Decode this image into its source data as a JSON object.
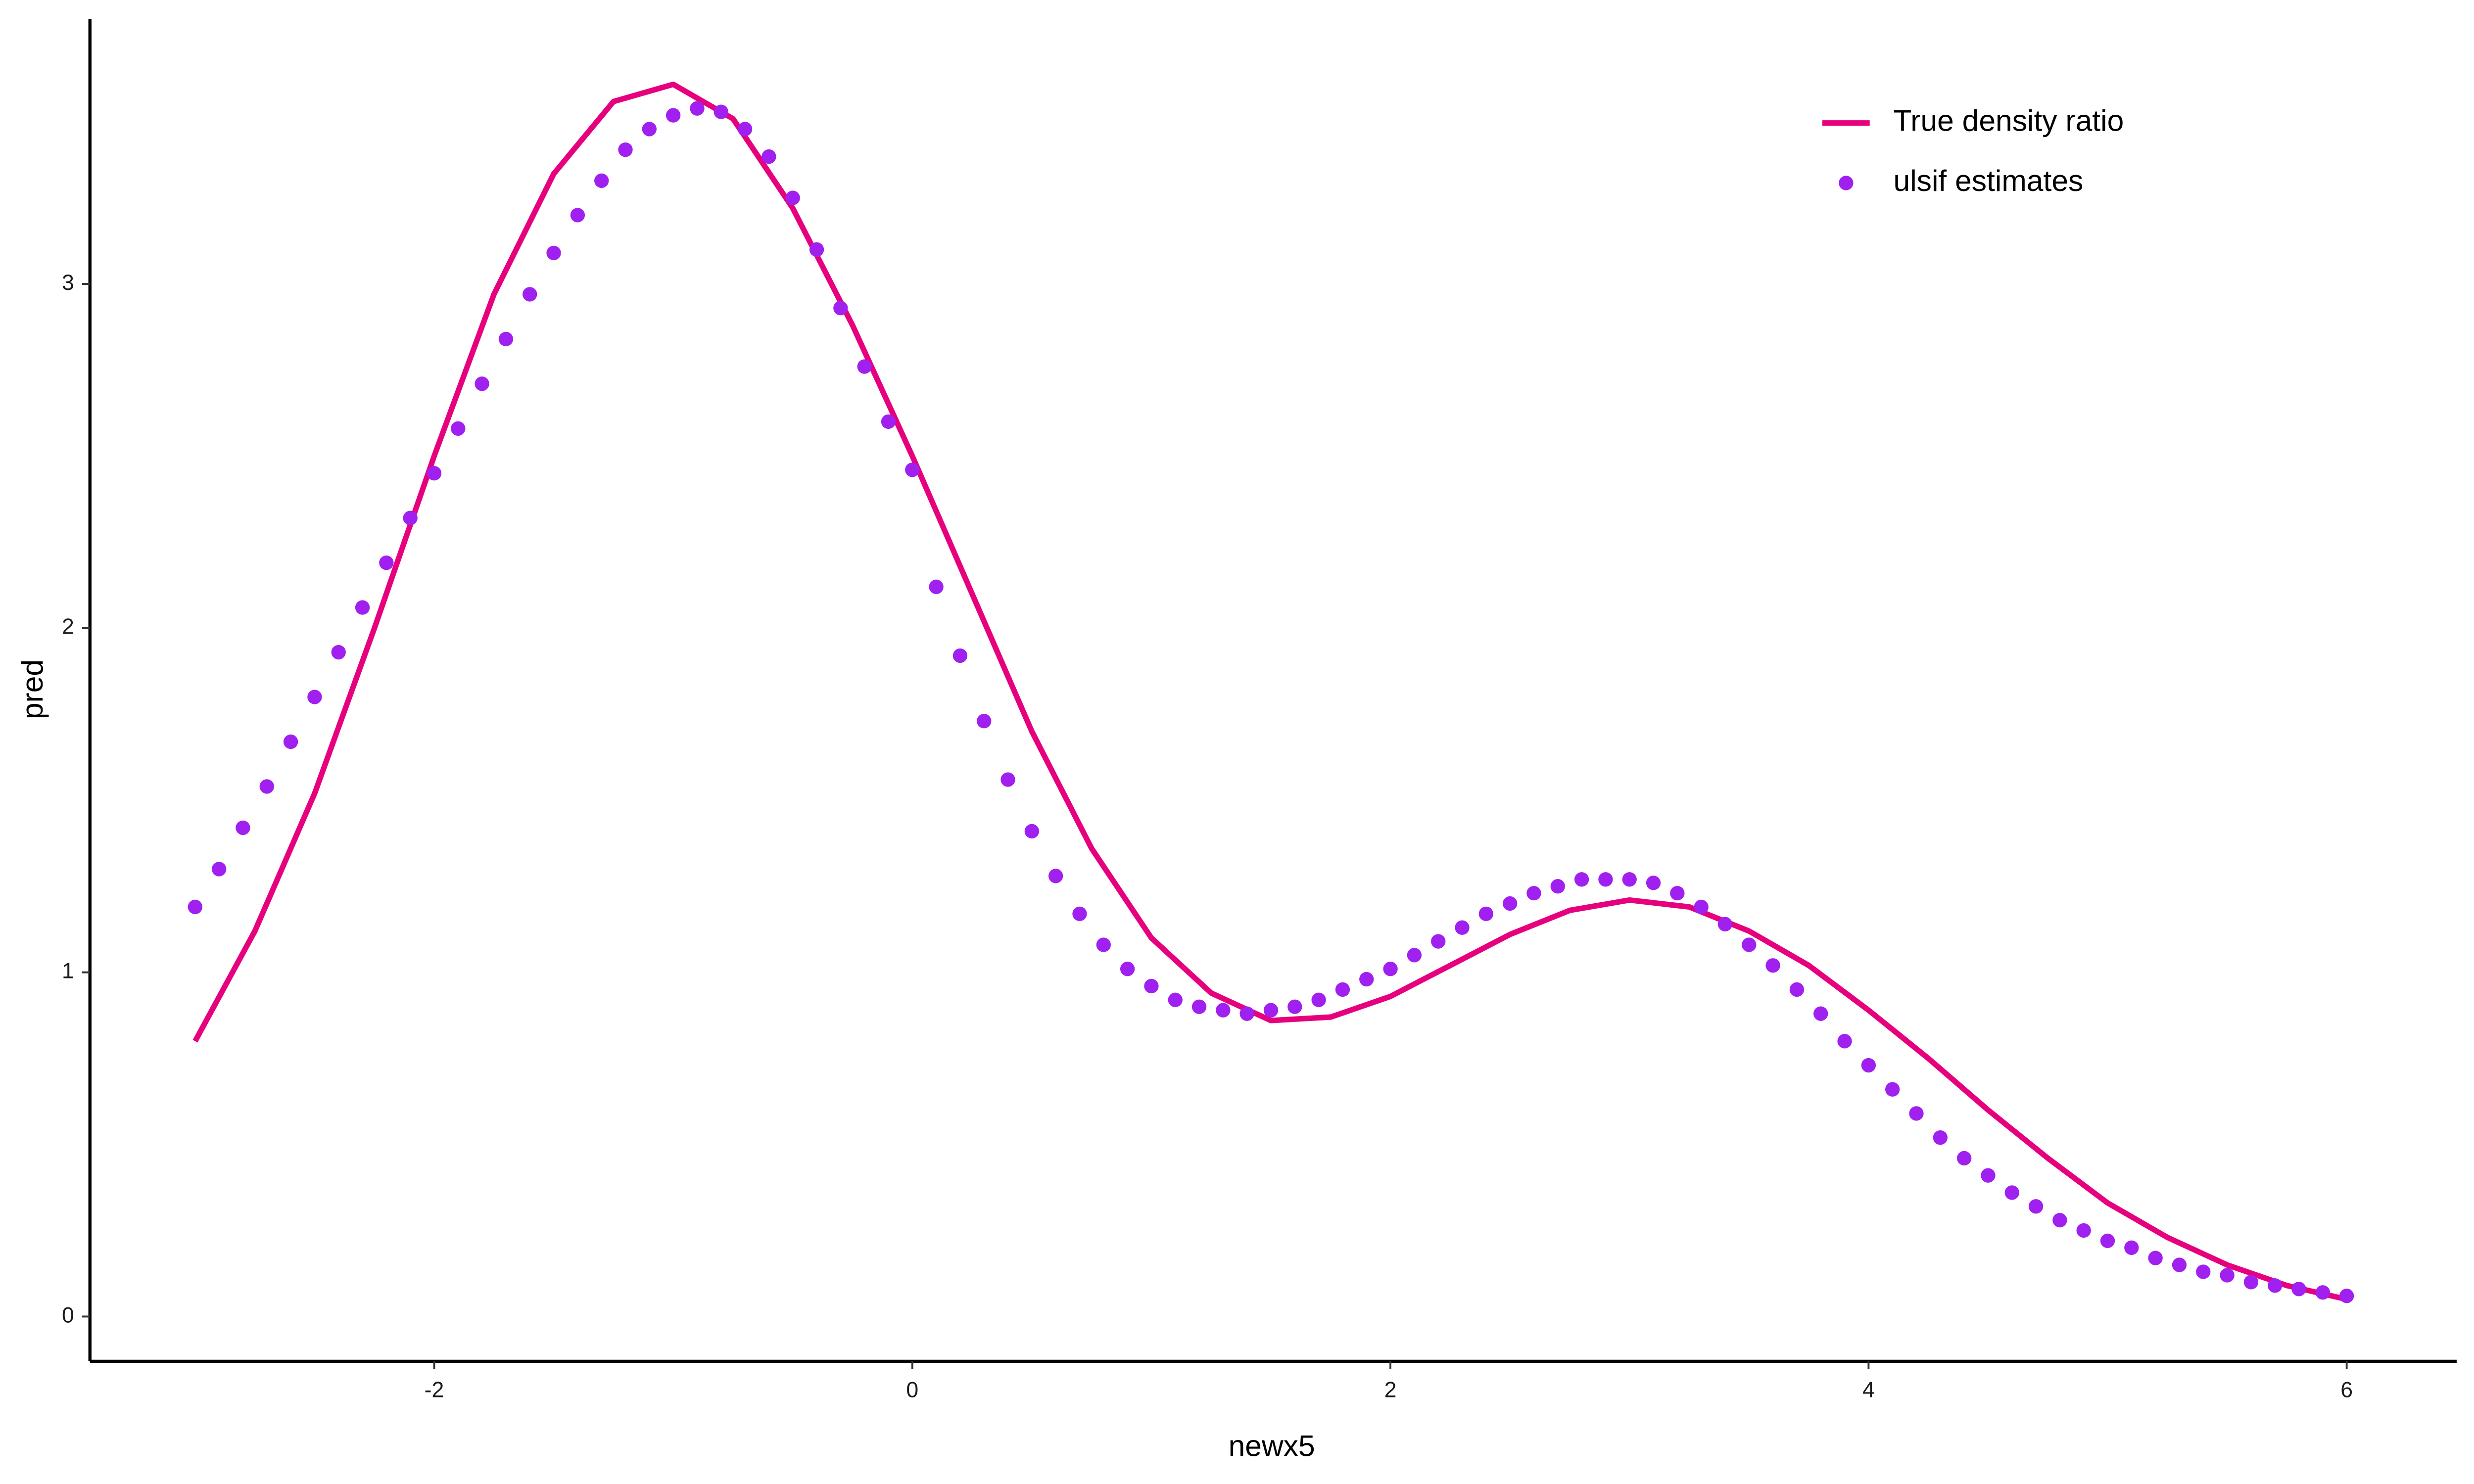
{
  "chart_data": {
    "type": "line",
    "xlabel": "newx5",
    "ylabel": "pred",
    "xlim": [
      -3.44,
      6.46
    ],
    "ylim": [
      -0.13,
      3.77
    ],
    "xticks": [
      -2,
      0,
      2,
      4,
      6
    ],
    "yticks": [
      0,
      1,
      2,
      3
    ],
    "grid": false,
    "legend": "top-right",
    "series": [
      {
        "name": "True density ratio",
        "color": "#e6007e",
        "style": "line",
        "x": [
          -3,
          -2.75,
          -2.5,
          -2.25,
          -2,
          -1.75,
          -1.5,
          -1.25,
          -1,
          -0.75,
          -0.5,
          -0.25,
          0,
          0.25,
          0.5,
          0.75,
          1,
          1.25,
          1.5,
          1.75,
          2,
          2.25,
          2.5,
          2.75,
          3,
          3.25,
          3.5,
          3.75,
          4,
          4.25,
          4.5,
          4.75,
          5,
          5.25,
          5.5,
          5.75,
          6
        ],
        "values": [
          0.8,
          1.12,
          1.52,
          2.0,
          2.5,
          2.97,
          3.32,
          3.53,
          3.58,
          3.48,
          3.22,
          2.88,
          2.5,
          2.1,
          1.7,
          1.36,
          1.1,
          0.94,
          0.86,
          0.87,
          0.93,
          1.02,
          1.11,
          1.18,
          1.21,
          1.19,
          1.12,
          1.02,
          0.89,
          0.75,
          0.6,
          0.46,
          0.33,
          0.23,
          0.15,
          0.09,
          0.05
        ]
      },
      {
        "name": "ulsif estimates",
        "color": "#a020f0",
        "style": "points",
        "x": [
          -3,
          -2.9,
          -2.8,
          -2.7,
          -2.6,
          -2.5,
          -2.4,
          -2.3,
          -2.2,
          -2.1,
          -2,
          -1.9,
          -1.8,
          -1.7,
          -1.6,
          -1.5,
          -1.4,
          -1.3,
          -1.2,
          -1.1,
          -1,
          -0.9,
          -0.8,
          -0.7,
          -0.6,
          -0.5,
          -0.4,
          -0.3,
          -0.2,
          -0.1,
          0,
          0.1,
          0.2,
          0.3,
          0.4,
          0.5,
          0.6,
          0.7,
          0.8,
          0.9,
          1,
          1.1,
          1.2,
          1.3,
          1.4,
          1.5,
          1.6,
          1.7,
          1.8,
          1.9,
          2,
          2.1,
          2.2,
          2.3,
          2.4,
          2.5,
          2.6,
          2.7,
          2.8,
          2.9,
          3,
          3.1,
          3.2,
          3.3,
          3.4,
          3.5,
          3.6,
          3.7,
          3.8,
          3.9,
          4,
          4.1,
          4.2,
          4.3,
          4.4,
          4.5,
          4.6,
          4.7,
          4.8,
          4.9,
          5,
          5.1,
          5.2,
          5.3,
          5.4,
          5.5,
          5.6,
          5.7,
          5.8,
          5.9,
          6
        ],
        "values": [
          1.19,
          1.3,
          1.42,
          1.54,
          1.67,
          1.8,
          1.93,
          2.06,
          2.19,
          2.32,
          2.45,
          2.58,
          2.71,
          2.84,
          2.97,
          3.09,
          3.2,
          3.3,
          3.39,
          3.45,
          3.49,
          3.51,
          3.5,
          3.45,
          3.37,
          3.25,
          3.1,
          2.93,
          2.76,
          2.6,
          2.46,
          2.12,
          1.92,
          1.73,
          1.56,
          1.41,
          1.28,
          1.17,
          1.08,
          1.01,
          0.96,
          0.92,
          0.9,
          0.89,
          0.88,
          0.89,
          0.9,
          0.92,
          0.95,
          0.98,
          1.01,
          1.05,
          1.09,
          1.13,
          1.17,
          1.2,
          1.23,
          1.25,
          1.27,
          1.27,
          1.27,
          1.26,
          1.23,
          1.19,
          1.14,
          1.08,
          1.02,
          0.95,
          0.88,
          0.8,
          0.73,
          0.66,
          0.59,
          0.52,
          0.46,
          0.41,
          0.36,
          0.32,
          0.28,
          0.25,
          0.22,
          0.2,
          0.17,
          0.15,
          0.13,
          0.12,
          0.1,
          0.09,
          0.08,
          0.07,
          0.06
        ]
      }
    ]
  }
}
